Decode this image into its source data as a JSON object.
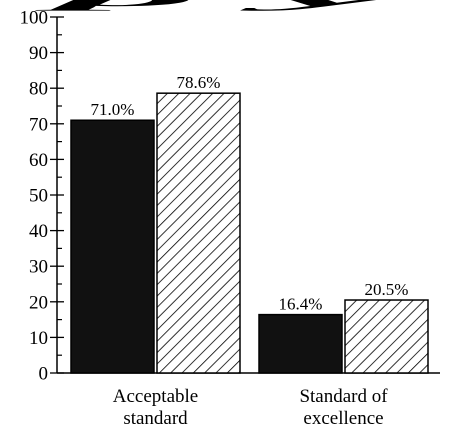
{
  "chart_data": {
    "type": "bar",
    "title": "",
    "xlabel": "",
    "ylabel": "",
    "ylim": [
      0,
      100
    ],
    "yticks": [
      0,
      10,
      20,
      30,
      40,
      50,
      60,
      70,
      80,
      90,
      100
    ],
    "categories": [
      [
        "Acceptable",
        "standard"
      ],
      [
        "Standard of",
        "excellence"
      ]
    ],
    "series": [
      {
        "fill": "solid",
        "color": "#111111",
        "values": [
          71.0,
          16.4
        ],
        "labels": [
          "71.0%",
          "16.4%"
        ]
      },
      {
        "fill": "hatched",
        "color": "#000000",
        "values": [
          78.6,
          20.5
        ],
        "labels": [
          "78.6%",
          "20.5%"
        ]
      }
    ],
    "grid": false,
    "legend": "none"
  }
}
